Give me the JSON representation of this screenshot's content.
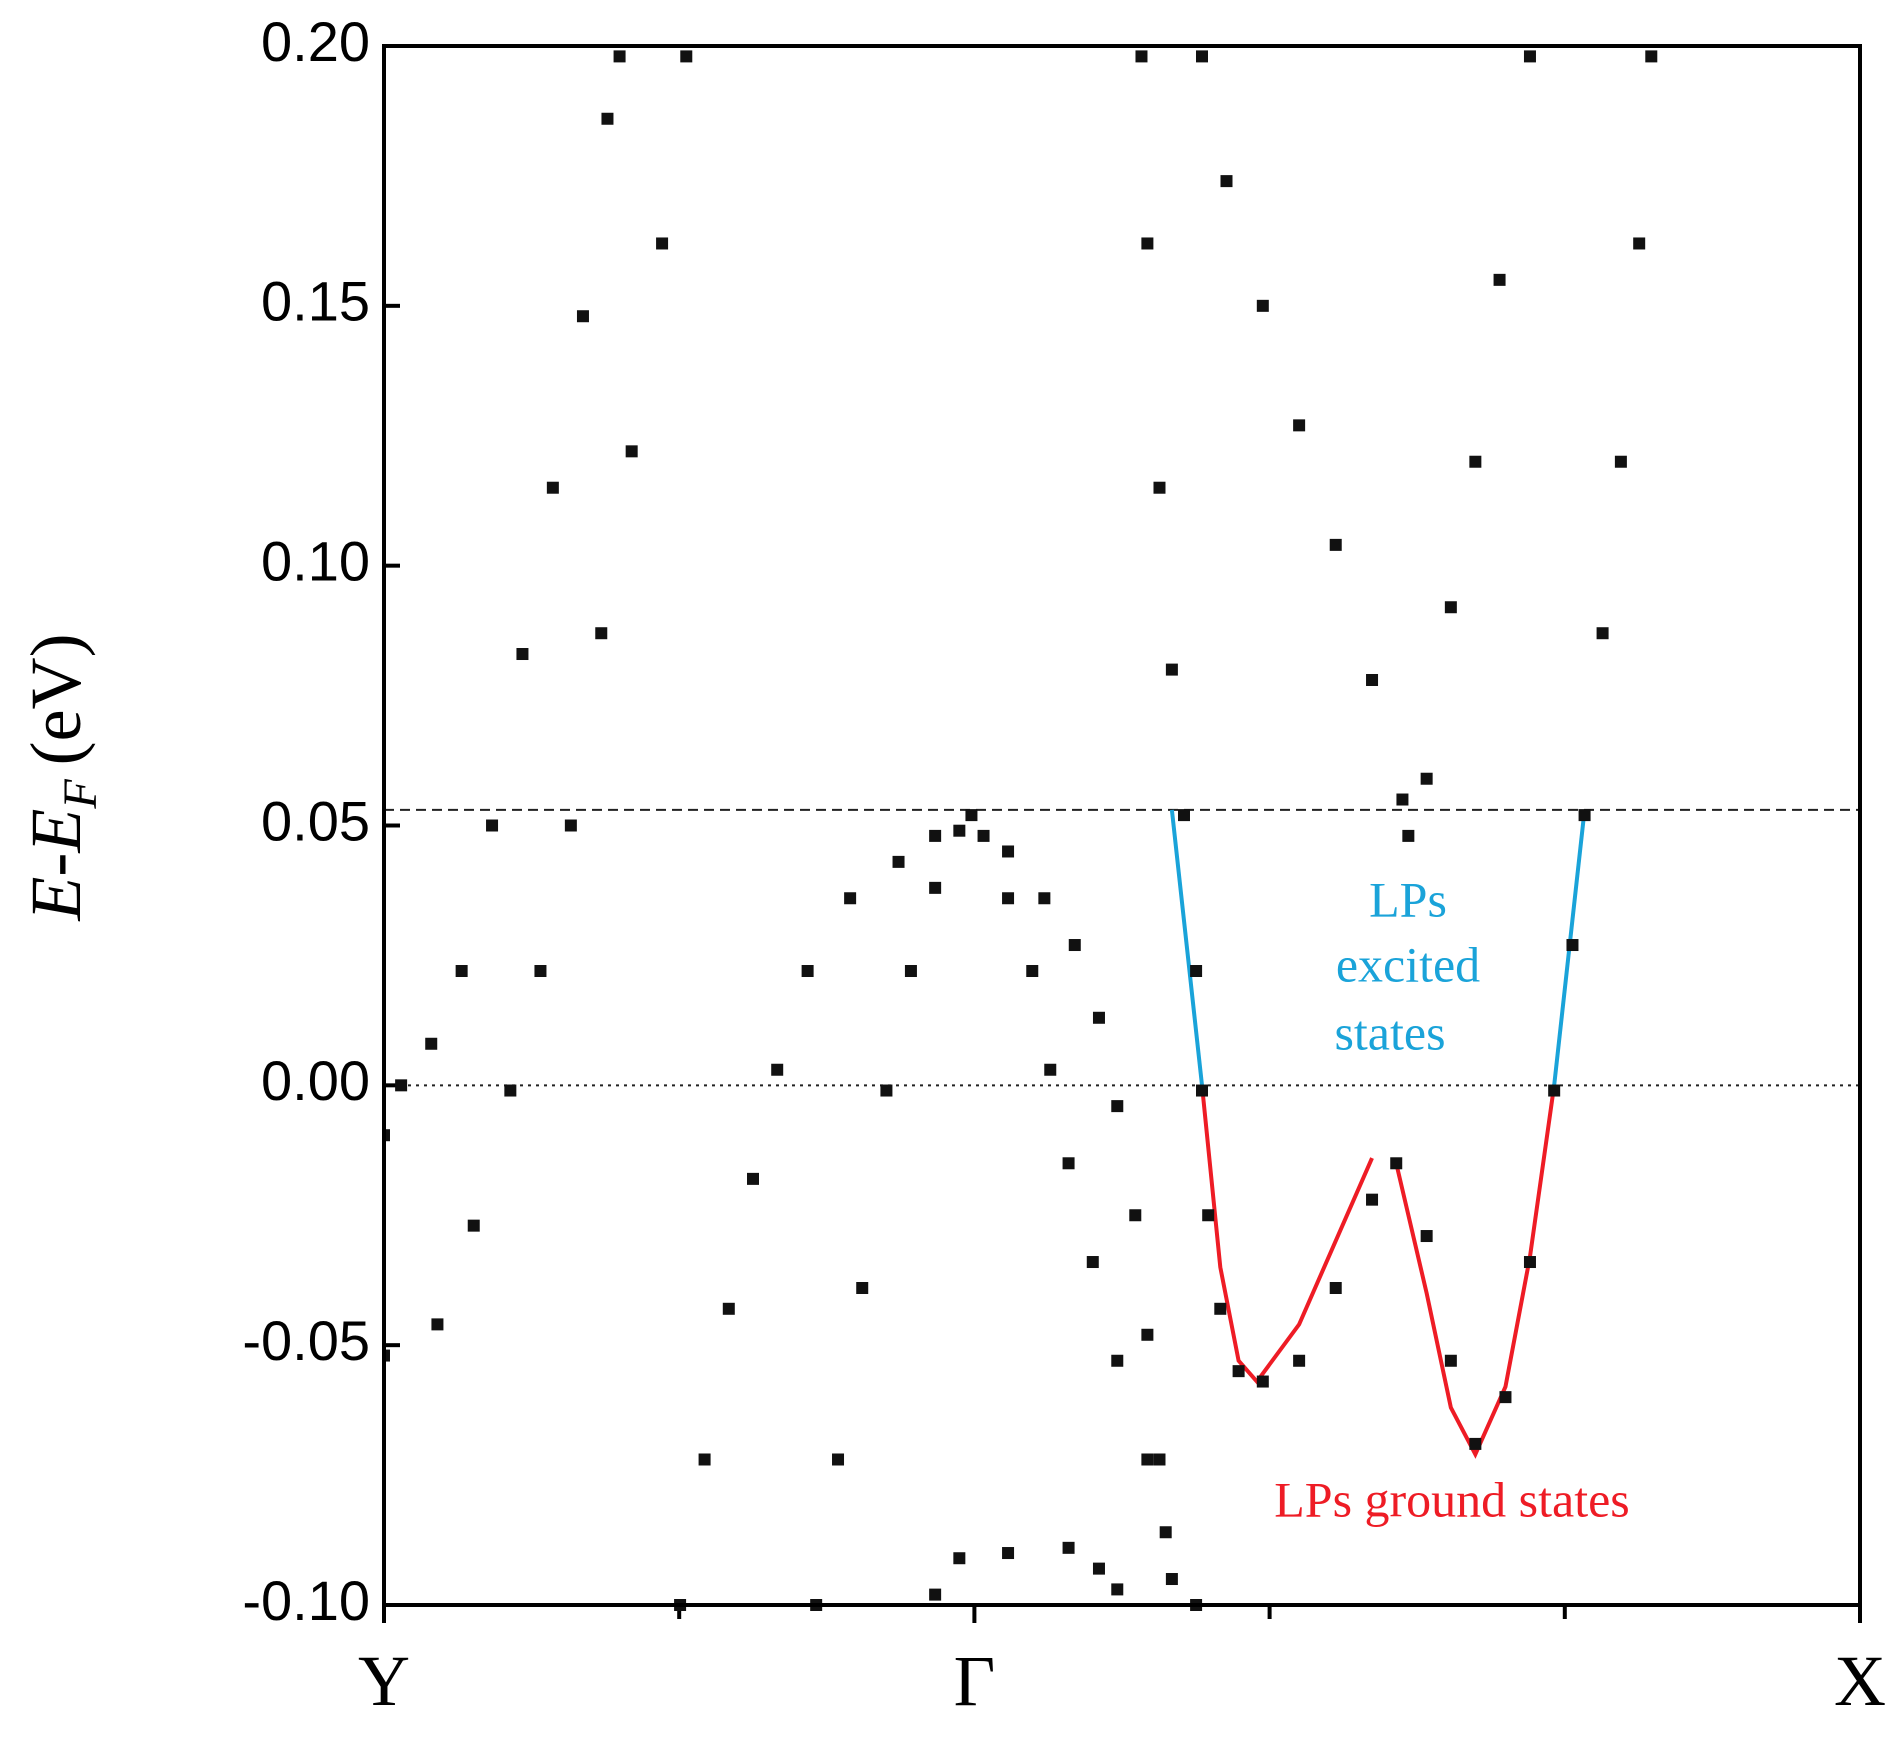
{
  "chart_data": {
    "type": "scatter",
    "ylabel": {
      "main": "E-E",
      "sub": "F",
      "unit": "(eV)"
    },
    "xlim": [
      0,
      5
    ],
    "xticks": [
      {
        "value": 0,
        "label": "Y"
      },
      {
        "value": 2,
        "label": "Γ"
      },
      {
        "value": 5,
        "label": "X"
      }
    ],
    "xminorticks": [
      1,
      3,
      4
    ],
    "ylim": [
      -0.1,
      0.2
    ],
    "yticks": [
      {
        "value": 0.2,
        "label": "0.20"
      },
      0.15,
      {
        "value": 0.1,
        "label": "0.10"
      },
      0.05,
      {
        "value": 0,
        "label": "0.00"
      },
      -0.05,
      {
        "value": -0.1,
        "label": "-0.10"
      }
    ],
    "hlines": [
      {
        "y": 0.053,
        "style": "dashed"
      },
      {
        "y": 0,
        "style": "dotted"
      }
    ],
    "series": [
      {
        "color": "#111111",
        "x": [
          0,
          0.058,
          0.16,
          0.263,
          0.366,
          0.469,
          0.572,
          0.674,
          0.757,
          0.798
        ],
        "values": [
          -0.0096,
          0.0,
          0.008,
          0.022,
          0.05,
          0.083,
          0.115,
          0.148,
          0.186,
          0.198
        ]
      },
      {
        "color": "#111111",
        "x": [
          0,
          0.181,
          0.304,
          0.428,
          0.53,
          0.633,
          0.736,
          0.839,
          0.942,
          1.024
        ],
        "values": [
          -0.052,
          -0.046,
          -0.027,
          -0.001,
          0.022,
          0.05,
          0.087,
          0.122,
          0.162,
          0.198
        ]
      },
      {
        "color": "#111111",
        "x": [
          1.003,
          1.086,
          1.168,
          1.25,
          1.332,
          1.435,
          1.579,
          1.743,
          1.867,
          1.99,
          2.114,
          2.237,
          2.34,
          2.422,
          2.484,
          2.545,
          2.586,
          2.627,
          2.669
        ],
        "values": [
          -0.1,
          -0.072,
          -0.043,
          -0.018,
          0.003,
          0.022,
          0.036,
          0.043,
          0.048,
          0.052,
          0.045,
          0.036,
          0.027,
          0.013,
          -0.004,
          -0.025,
          -0.048,
          -0.072,
          -0.095
        ]
      },
      {
        "color": "#111111",
        "x": [
          1.464,
          1.538,
          1.62,
          1.702,
          1.785,
          1.867,
          1.949,
          2.031,
          2.114,
          2.196,
          2.257,
          2.319,
          2.401,
          2.484,
          2.586,
          2.648,
          2.751
        ],
        "values": [
          -0.1,
          -0.072,
          -0.039,
          -0.001,
          0.022,
          0.038,
          0.049,
          0.048,
          0.036,
          0.022,
          0.003,
          -0.015,
          -0.034,
          -0.053,
          -0.072,
          -0.086,
          -0.1
        ]
      },
      {
        "color": "#111111",
        "x": [
          1.867,
          1.949,
          2.114,
          2.319,
          2.422,
          2.484
        ],
        "values": [
          -0.098,
          -0.091,
          -0.09,
          -0.089,
          -0.093,
          -0.097
        ]
      },
      {
        "color": "#111111",
        "x": [
          2.566,
          2.586,
          2.627,
          2.669,
          2.71,
          2.751,
          2.771,
          2.792,
          2.833,
          2.895,
          2.977,
          3.1,
          3.224,
          3.347,
          3.429,
          3.532,
          3.614,
          3.697,
          3.799,
          3.882,
          3.964,
          4.026,
          4.067,
          4.128,
          4.19,
          4.252,
          4.293
        ],
        "values": [
          0.198,
          0.162,
          0.115,
          0.08,
          0.052,
          0.022,
          -0.001,
          -0.025,
          -0.043,
          -0.055,
          -0.057,
          -0.053,
          -0.039,
          -0.022,
          -0.015,
          -0.029,
          -0.053,
          -0.069,
          -0.06,
          -0.034,
          -0.001,
          0.027,
          0.052,
          0.087,
          0.12,
          0.162,
          0.198
        ]
      },
      {
        "color": "#111111",
        "x": [
          2.771,
          2.854,
          2.977,
          3.1,
          3.224,
          3.347,
          3.45,
          3.47,
          3.532,
          3.614,
          3.697,
          3.779,
          3.882
        ],
        "values": [
          0.198,
          0.174,
          0.15,
          0.127,
          0.104,
          0.078,
          0.055,
          0.048,
          0.059,
          0.092,
          0.12,
          0.155,
          0.198
        ]
      }
    ],
    "fits": [
      {
        "color": "#1aa3d9",
        "x": [
          2.669,
          2.771
        ],
        "values": [
          0.053,
          0.0
        ]
      },
      {
        "color": "#1aa3d9",
        "x": [
          4.067,
          3.964
        ],
        "values": [
          0.053,
          0.0
        ]
      },
      {
        "color": "#ee1c25",
        "x": [
          2.771,
          2.833,
          2.895,
          2.957,
          3.1,
          3.347
        ],
        "values": [
          0.0,
          -0.035,
          -0.053,
          -0.057,
          -0.046,
          -0.014
        ]
      },
      {
        "color": "#ee1c25",
        "x": [
          3.429,
          3.532,
          3.614,
          3.697,
          3.799,
          3.882,
          3.964
        ],
        "values": [
          -0.015,
          -0.04,
          -0.062,
          -0.071,
          -0.058,
          -0.033,
          0.0
        ]
      }
    ],
    "annotations": [
      {
        "text": "LPs",
        "color": "#1aa3d9"
      },
      {
        "text": "excited",
        "color": "#1aa3d9"
      },
      {
        "text": "states",
        "color": "#1aa3d9"
      },
      {
        "text": "LPs ground states",
        "color": "#ee1c25"
      }
    ]
  }
}
